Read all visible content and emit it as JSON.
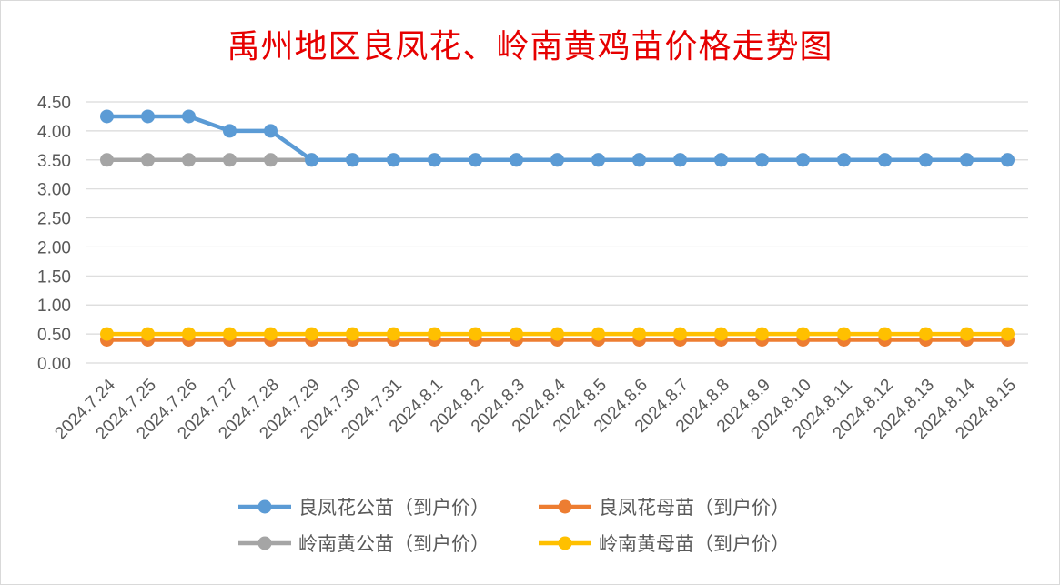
{
  "chart_data": {
    "type": "line",
    "title": "禹州地区良凤花、岭南黄鸡苗价格走势图",
    "categories": [
      "2024.7.24",
      "2024.7.25",
      "2024.7.26",
      "2024.7.27",
      "2024.7.28",
      "2024.7.29",
      "2024.7.30",
      "2024.7.31",
      "2024.8.1",
      "2024.8.2",
      "2024.8.3",
      "2024.8.4",
      "2024.8.5",
      "2024.8.6",
      "2024.8.7",
      "2024.8.8",
      "2024.8.9",
      "2024.8.10",
      "2024.8.11",
      "2024.8.12",
      "2024.8.13",
      "2024.8.14",
      "2024.8.15"
    ],
    "ylim": [
      0,
      4.5
    ],
    "yticks": [
      "0.00",
      "0.50",
      "1.00",
      "1.50",
      "2.00",
      "2.50",
      "3.00",
      "3.50",
      "4.00",
      "4.50"
    ],
    "grid": true,
    "legend_position": "bottom",
    "series": [
      {
        "name": "良凤花公苗（到户价）",
        "color": "#5b9bd5",
        "values": [
          4.25,
          4.25,
          4.25,
          4.0,
          4.0,
          3.5,
          3.5,
          3.5,
          3.5,
          3.5,
          3.5,
          3.5,
          3.5,
          3.5,
          3.5,
          3.5,
          3.5,
          3.5,
          3.5,
          3.5,
          3.5,
          3.5,
          3.5
        ]
      },
      {
        "name": "良凤花母苗（到户价）",
        "color": "#ed7d31",
        "values": [
          0.4,
          0.4,
          0.4,
          0.4,
          0.4,
          0.4,
          0.4,
          0.4,
          0.4,
          0.4,
          0.4,
          0.4,
          0.4,
          0.4,
          0.4,
          0.4,
          0.4,
          0.4,
          0.4,
          0.4,
          0.4,
          0.4,
          0.4
        ]
      },
      {
        "name": "岭南黄公苗（到户价）",
        "color": "#a5a5a5",
        "values": [
          3.5,
          3.5,
          3.5,
          3.5,
          3.5,
          3.5,
          3.5,
          3.5,
          3.5,
          3.5,
          3.5,
          3.5,
          3.5,
          3.5,
          3.5,
          3.5,
          3.5,
          3.5,
          3.5,
          3.5,
          3.5,
          3.5,
          3.5
        ]
      },
      {
        "name": "岭南黄母苗（到户价）",
        "color": "#ffc000",
        "values": [
          0.5,
          0.5,
          0.5,
          0.5,
          0.5,
          0.5,
          0.5,
          0.5,
          0.5,
          0.5,
          0.5,
          0.5,
          0.5,
          0.5,
          0.5,
          0.5,
          0.5,
          0.5,
          0.5,
          0.5,
          0.5,
          0.5,
          0.5
        ]
      }
    ]
  },
  "colors": {
    "title": "#e60000",
    "grid": "#d9d9d9",
    "axis_text": "#595959"
  }
}
